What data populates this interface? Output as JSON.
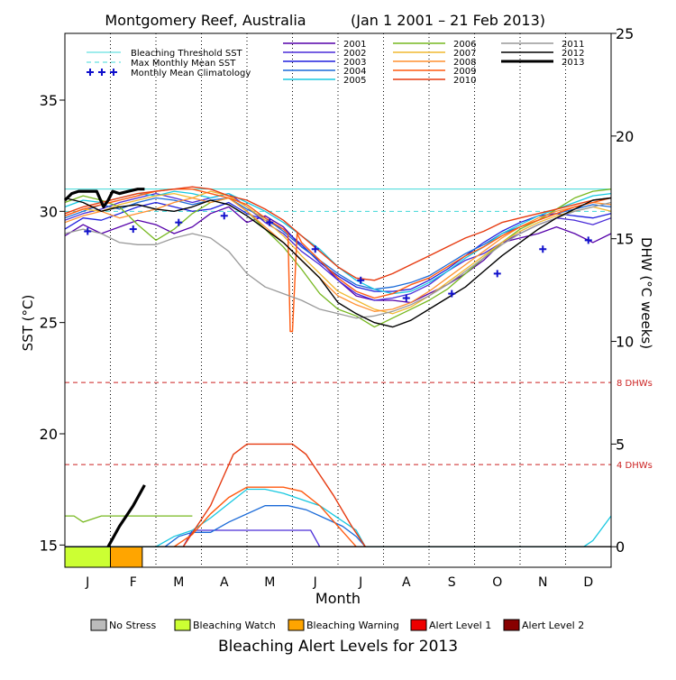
{
  "chart_data": {
    "type": "line",
    "title": "Montgomery Reef, Australia",
    "period": "(Jan 1 2001 – 21 Feb 2013)",
    "xlabel": "Month",
    "ylabel": "SST (°C)",
    "y2label": "DHW (°C weeks)",
    "months": [
      "J",
      "F",
      "M",
      "A",
      "M",
      "J",
      "J",
      "A",
      "S",
      "O",
      "N",
      "D"
    ],
    "ylim": [
      14.0,
      38.0
    ],
    "yticks": [
      15,
      20,
      25,
      30,
      35
    ],
    "y2lim": [
      -1.0,
      25.0
    ],
    "y2ticks": [
      0,
      5,
      10,
      15,
      20,
      25
    ],
    "bleaching_threshold_sst": 31.0,
    "max_monthly_mean_sst": 30.0,
    "dhw_reference_lines": [
      {
        "value": 8,
        "label": "8 DHWs"
      },
      {
        "value": 4,
        "label": "4 DHWs"
      }
    ],
    "legend_ref": [
      {
        "label": "Bleaching Threshold SST",
        "color": "#3fd8d8",
        "style": "solid"
      },
      {
        "label": "Max Monthly Mean SST",
        "color": "#3fd8d8",
        "style": "dashed"
      },
      {
        "label": "Monthly Mean Climatology",
        "color": "#1010cc",
        "style": "plus"
      }
    ],
    "climatology": {
      "name": "Monthly Mean Climatology",
      "color": "#1010cc",
      "x": [
        0.5,
        1.5,
        2.5,
        3.5,
        4.5,
        5.5,
        6.5,
        7.5,
        8.5,
        9.5,
        10.5,
        11.5
      ],
      "values": [
        29.1,
        29.2,
        29.5,
        29.8,
        29.5,
        28.3,
        26.9,
        26.1,
        26.3,
        27.2,
        28.3,
        28.7
      ]
    },
    "series": [
      {
        "name": "2001",
        "color": "#5500aa",
        "width": 1.3,
        "sst_x": [
          0,
          0.4,
          0.8,
          1.2,
          1.6,
          2.0,
          2.4,
          2.8,
          3.2,
          3.6,
          4.0,
          4.4,
          4.8,
          5.2,
          5.6,
          6.0,
          6.4,
          6.8,
          7.2,
          7.6,
          8.0,
          8.4,
          8.8,
          9.2,
          9.6,
          10.0,
          10.4,
          10.8,
          11.2,
          11.6,
          12.0
        ],
        "sst": [
          28.9,
          29.4,
          29.0,
          29.3,
          29.6,
          29.4,
          29.0,
          29.3,
          29.9,
          30.2,
          29.5,
          29.8,
          29.3,
          28.4,
          27.8,
          26.9,
          26.2,
          26.0,
          26.0,
          25.9,
          26.3,
          26.7,
          27.2,
          27.8,
          28.6,
          28.8,
          29.0,
          29.3,
          29.0,
          28.6,
          29.0
        ],
        "dhw_x": [],
        "dhw": []
      },
      {
        "name": "2002",
        "color": "#4a2cd8",
        "width": 1.3,
        "sst_x": [
          0,
          0.4,
          0.8,
          1.2,
          1.6,
          2.0,
          2.4,
          2.8,
          3.2,
          3.6,
          4.0,
          4.4,
          4.8,
          5.2,
          5.6,
          6.0,
          6.4,
          6.8,
          7.2,
          7.6,
          8.0,
          8.4,
          8.8,
          9.2,
          9.6,
          10.0,
          10.4,
          10.8,
          11.2,
          11.6,
          12.0
        ],
        "sst": [
          29.6,
          29.9,
          30.1,
          30.4,
          30.6,
          30.8,
          30.6,
          30.4,
          30.6,
          30.8,
          30.2,
          29.5,
          29.0,
          28.2,
          27.6,
          26.9,
          26.3,
          26.0,
          26.1,
          26.3,
          26.7,
          27.3,
          27.8,
          28.1,
          28.6,
          29.0,
          29.4,
          29.7,
          29.6,
          29.4,
          29.7
        ],
        "dhw_x": [
          2.6,
          2.8,
          5.4,
          5.6
        ],
        "dhw": [
          0,
          0.8,
          0.8,
          0
        ]
      },
      {
        "name": "2003",
        "color": "#2020dd",
        "width": 1.3,
        "sst_x": [
          0,
          0.4,
          0.8,
          1.2,
          1.6,
          2.0,
          2.4,
          2.8,
          3.2,
          3.6,
          4.0,
          4.4,
          4.8,
          5.2,
          5.6,
          6.0,
          6.4,
          6.8,
          7.2,
          7.6,
          8.0,
          8.4,
          8.8,
          9.2,
          9.6,
          10.0,
          10.4,
          10.8,
          11.2,
          11.6,
          12.0
        ],
        "sst": [
          29.2,
          29.7,
          29.6,
          29.9,
          30.2,
          30.4,
          30.2,
          30.0,
          30.1,
          30.4,
          29.9,
          29.6,
          29.2,
          28.5,
          27.7,
          27.1,
          26.6,
          26.4,
          26.4,
          26.5,
          26.9,
          27.4,
          28.0,
          28.6,
          29.1,
          29.5,
          29.8,
          29.9,
          29.8,
          29.7,
          29.9
        ],
        "dhw_x": [],
        "dhw": []
      },
      {
        "name": "2004",
        "color": "#1a6ad8",
        "width": 1.3,
        "sst_x": [
          0,
          0.4,
          0.8,
          1.2,
          1.6,
          2.0,
          2.4,
          2.8,
          3.2,
          3.6,
          4.0,
          4.4,
          4.8,
          5.2,
          5.6,
          6.0,
          6.4,
          6.8,
          7.2,
          7.6,
          8.0,
          8.4,
          8.8,
          9.2,
          9.6,
          10.0,
          10.4,
          10.8,
          11.2,
          11.6,
          12.0
        ],
        "sst": [
          29.7,
          30.0,
          30.3,
          30.1,
          30.4,
          30.6,
          30.5,
          30.3,
          30.5,
          30.6,
          30.1,
          29.7,
          29.1,
          28.4,
          27.8,
          27.2,
          26.7,
          26.5,
          26.6,
          26.8,
          27.1,
          27.6,
          28.1,
          28.5,
          29.0,
          29.3,
          29.6,
          29.9,
          30.1,
          30.3,
          30.2
        ],
        "dhw_x": [
          2.2,
          2.5,
          2.8,
          3.2,
          3.6,
          4.4,
          4.9,
          5.3,
          5.7,
          6.1,
          6.4,
          6.6
        ],
        "dhw": [
          0,
          0.5,
          0.7,
          0.7,
          1.2,
          2.0,
          2.0,
          1.8,
          1.4,
          1.0,
          0.5,
          0
        ]
      },
      {
        "name": "2005",
        "color": "#18c8e0",
        "width": 1.3,
        "sst_x": [
          0,
          0.4,
          0.8,
          1.2,
          1.6,
          2.0,
          2.4,
          2.8,
          3.2,
          3.6,
          4.0,
          4.4,
          4.8,
          5.2,
          5.6,
          6.0,
          6.4,
          6.8,
          7.2,
          7.6,
          8.0,
          8.4,
          8.8,
          9.2,
          9.6,
          10.0,
          10.4,
          10.8,
          11.2,
          11.6,
          12.0
        ],
        "sst": [
          30.2,
          30.5,
          30.4,
          30.6,
          30.8,
          30.7,
          30.9,
          30.8,
          30.6,
          30.8,
          30.4,
          30.0,
          29.5,
          28.9,
          28.3,
          27.5,
          26.9,
          26.5,
          26.3,
          26.4,
          26.8,
          27.3,
          27.9,
          28.4,
          29.0,
          29.4,
          29.8,
          30.1,
          30.4,
          30.7,
          30.8
        ],
        "dhw_x": [
          0,
          0.9,
          1.4,
          2.0,
          2.4,
          2.8,
          3.2,
          3.6,
          4.0,
          4.4,
          4.8,
          5.2,
          5.6,
          6.0,
          6.4,
          6.6,
          11.4,
          11.6,
          11.8,
          12.0
        ],
        "dhw": [
          0,
          0,
          0,
          0,
          0.5,
          0.8,
          1.4,
          2.1,
          2.8,
          2.8,
          2.6,
          2.3,
          2.0,
          1.4,
          0.8,
          0,
          0,
          0.3,
          0.9,
          1.5
        ]
      },
      {
        "name": "2006",
        "color": "#77b820",
        "width": 1.3,
        "sst_x": [
          0,
          0.4,
          0.8,
          1.2,
          1.6,
          2.0,
          2.4,
          2.8,
          3.2,
          3.6,
          4.0,
          4.4,
          4.8,
          5.2,
          5.6,
          6.0,
          6.4,
          6.8,
          7.2,
          7.6,
          8.0,
          8.4,
          8.8,
          9.2,
          9.6,
          10.0,
          10.4,
          10.8,
          11.2,
          11.6,
          12.0
        ],
        "sst": [
          30.4,
          30.7,
          30.5,
          30.2,
          29.4,
          28.7,
          29.2,
          29.9,
          30.4,
          30.6,
          30.0,
          29.2,
          28.4,
          27.4,
          26.3,
          25.6,
          25.3,
          24.8,
          25.2,
          25.6,
          26.0,
          26.5,
          27.2,
          27.9,
          28.6,
          29.2,
          29.6,
          30.1,
          30.6,
          30.9,
          31.0
        ],
        "dhw_x": [
          0,
          0.2,
          0.4,
          0.8,
          1.2,
          1.6,
          2.0,
          2.4,
          2.8
        ],
        "dhw": [
          1.5,
          1.5,
          1.2,
          1.5,
          1.5,
          1.5,
          1.5,
          1.5,
          1.5
        ]
      },
      {
        "name": "2007",
        "color": "#f0b830",
        "width": 1.3,
        "sst_x": [
          0,
          0.4,
          0.8,
          1.2,
          1.6,
          2.0,
          2.4,
          2.8,
          3.2,
          3.6,
          4.0,
          4.4,
          4.8,
          5.2,
          5.6,
          6.0,
          6.4,
          6.8,
          7.2,
          7.6,
          8.0,
          8.4,
          8.8,
          9.2,
          9.6,
          10.0,
          10.4,
          10.8,
          11.2,
          11.6,
          12.0
        ],
        "sst": [
          29.8,
          30.1,
          30.0,
          30.3,
          30.5,
          30.7,
          30.8,
          30.6,
          30.9,
          30.7,
          30.2,
          29.6,
          28.9,
          28.0,
          27.2,
          26.4,
          26.0,
          25.6,
          25.4,
          25.7,
          26.2,
          26.8,
          27.4,
          28.0,
          28.6,
          29.1,
          29.5,
          29.8,
          30.0,
          30.2,
          30.0
        ],
        "dhw_x": [],
        "dhw": []
      },
      {
        "name": "2008",
        "color": "#ff9030",
        "width": 1.3,
        "sst_x": [
          0,
          0.4,
          0.8,
          1.2,
          1.6,
          2.0,
          2.4,
          2.8,
          3.2,
          3.6,
          4.0,
          4.4,
          4.8,
          5.2,
          5.6,
          6.0,
          6.4,
          6.8,
          7.2,
          7.6,
          8.0,
          8.4,
          8.8,
          9.2,
          9.6,
          10.0,
          10.4,
          10.8,
          11.2,
          11.6,
          12.0
        ],
        "sst": [
          29.5,
          29.8,
          30.0,
          29.7,
          29.9,
          30.1,
          30.4,
          30.6,
          30.4,
          30.6,
          30.0,
          29.3,
          28.6,
          27.8,
          27.0,
          26.2,
          25.8,
          25.5,
          25.6,
          25.9,
          26.4,
          27.0,
          27.6,
          28.2,
          28.8,
          29.3,
          29.7,
          30.0,
          30.2,
          30.4,
          30.3
        ],
        "dhw_x": [],
        "dhw": []
      },
      {
        "name": "2009",
        "color": "#ff5a10",
        "width": 1.4,
        "sst_x": [
          0,
          0.4,
          0.8,
          1.2,
          1.6,
          2.0,
          2.4,
          2.8,
          3.2,
          3.6,
          4.0,
          4.4,
          4.8,
          4.9,
          4.95,
          5.0,
          5.1,
          5.2,
          5.6,
          6.0,
          6.4,
          6.8,
          7.2,
          7.6,
          8.0,
          8.4,
          8.8,
          9.2,
          9.6,
          10.0,
          10.4,
          10.8,
          11.2,
          11.6,
          12.0
        ],
        "sst": [
          29.8,
          30.1,
          30.3,
          30.5,
          30.7,
          30.9,
          31.0,
          31.0,
          30.8,
          30.6,
          30.3,
          29.7,
          29.2,
          29.0,
          24.6,
          24.6,
          29.0,
          28.6,
          27.8,
          27.0,
          26.4,
          26.1,
          26.3,
          26.7,
          27.0,
          27.5,
          28.0,
          28.4,
          28.9,
          29.3,
          29.6,
          29.9,
          30.2,
          30.4,
          30.6
        ],
        "dhw_x": [
          2.4,
          2.8,
          3.2,
          3.6,
          4.0,
          4.4,
          4.8,
          5.2,
          5.6,
          6.0,
          6.4
        ],
        "dhw": [
          0,
          0.6,
          1.6,
          2.4,
          2.9,
          2.9,
          2.9,
          2.7,
          2.0,
          1.0,
          0
        ]
      },
      {
        "name": "2010",
        "color": "#e63a10",
        "width": 1.4,
        "sst_x": [
          0,
          0.4,
          0.8,
          1.2,
          1.6,
          2.0,
          2.4,
          2.8,
          3.2,
          3.6,
          4.0,
          4.4,
          4.8,
          5.2,
          5.6,
          6.0,
          6.4,
          6.8,
          7.2,
          7.6,
          8.0,
          8.4,
          8.8,
          9.2,
          9.6,
          10.0,
          10.4,
          10.8,
          11.2,
          11.6,
          12.0
        ],
        "sst": [
          29.9,
          30.2,
          30.4,
          30.6,
          30.8,
          30.9,
          31.0,
          31.1,
          31.0,
          30.7,
          30.5,
          30.1,
          29.6,
          28.9,
          28.2,
          27.5,
          27.0,
          26.9,
          27.2,
          27.6,
          28.0,
          28.4,
          28.8,
          29.1,
          29.5,
          29.7,
          29.9,
          30.1,
          30.3,
          30.5,
          30.6
        ],
        "dhw_x": [
          2.6,
          2.9,
          3.2,
          3.5,
          3.7,
          4.0,
          4.5,
          5.0,
          5.3,
          5.6,
          5.9,
          6.3,
          6.6
        ],
        "dhw": [
          0,
          1.0,
          2.0,
          3.5,
          4.5,
          5.0,
          5.0,
          5.0,
          4.5,
          3.5,
          2.5,
          1.0,
          0
        ]
      },
      {
        "name": "2011",
        "color": "#999999",
        "width": 1.3,
        "sst_x": [
          0,
          0.4,
          0.8,
          1.2,
          1.6,
          2.0,
          2.4,
          2.8,
          3.2,
          3.6,
          4.0,
          4.4,
          4.8,
          5.2,
          5.6,
          6.0,
          6.4,
          6.8,
          7.2,
          7.6,
          8.0,
          8.4,
          8.8,
          9.2,
          9.6,
          10.0,
          10.4,
          10.8,
          11.2,
          11.6,
          12.0
        ],
        "sst": [
          29.0,
          29.2,
          29.0,
          28.6,
          28.5,
          28.5,
          28.8,
          29.0,
          28.8,
          28.2,
          27.2,
          26.6,
          26.3,
          26.0,
          25.6,
          25.4,
          25.2,
          25.3,
          25.5,
          25.8,
          26.2,
          26.7,
          27.3,
          27.9,
          28.5,
          29.0,
          29.4,
          29.7,
          30.0,
          30.2,
          30.4
        ],
        "dhw_x": [],
        "dhw": []
      },
      {
        "name": "2012",
        "color": "#000000",
        "width": 1.4,
        "sst_x": [
          0,
          0.4,
          0.8,
          1.2,
          1.6,
          2.0,
          2.4,
          2.8,
          3.2,
          3.6,
          4.0,
          4.4,
          4.8,
          5.2,
          5.6,
          6.0,
          6.4,
          6.8,
          7.2,
          7.6,
          8.0,
          8.4,
          8.8,
          9.2,
          9.6,
          10.0,
          10.4,
          10.8,
          11.2,
          11.6,
          12.0
        ],
        "sst": [
          30.6,
          30.4,
          30.0,
          30.2,
          30.3,
          30.1,
          30.0,
          30.2,
          30.5,
          30.3,
          29.8,
          29.2,
          28.6,
          27.8,
          27.0,
          25.9,
          25.4,
          25.0,
          24.8,
          25.1,
          25.6,
          26.1,
          26.6,
          27.3,
          28.0,
          28.6,
          29.2,
          29.7,
          30.1,
          30.5,
          30.6
        ],
        "dhw_x": [
          0,
          12.0
        ],
        "dhw": [
          0,
          0
        ]
      },
      {
        "name": "2013",
        "color": "#000000",
        "width": 3.2,
        "sst_x": [
          0,
          0.15,
          0.3,
          0.5,
          0.7,
          0.85,
          0.95,
          1.05,
          1.2,
          1.4,
          1.6,
          1.75
        ],
        "sst": [
          30.5,
          30.8,
          30.9,
          30.9,
          30.9,
          30.2,
          30.5,
          30.9,
          30.8,
          30.9,
          31.0,
          31.0
        ],
        "dhw_x": [
          0.95,
          1.2,
          1.5,
          1.75
        ],
        "dhw": [
          0,
          1.0,
          2.0,
          3.0
        ]
      }
    ],
    "alert_bar": {
      "title": "Bleaching Alert Levels for 2013",
      "segments": [
        {
          "level": "Bleaching Watch",
          "start": 0.0,
          "end": 1.0
        },
        {
          "level": "Bleaching Warning",
          "start": 1.0,
          "end": 1.7
        }
      ],
      "legend": [
        {
          "label": "No Stress",
          "color": "#bbbbbb"
        },
        {
          "label": "Bleaching Watch",
          "color": "#ccff33"
        },
        {
          "label": "Bleaching Warning",
          "color": "#ffa500"
        },
        {
          "label": "Alert Level 1",
          "color": "#ee0000"
        },
        {
          "label": "Alert Level 2",
          "color": "#880000"
        }
      ]
    }
  }
}
